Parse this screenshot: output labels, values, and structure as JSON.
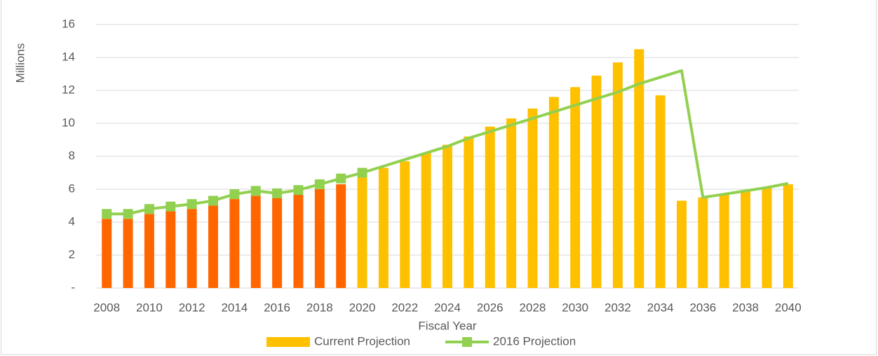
{
  "chart_data": {
    "type": "bar_line",
    "x_axis_title": "Fiscal Year",
    "y_axis_title": "Millions",
    "categories": [
      "2008",
      null,
      "2010",
      null,
      "2012",
      null,
      "2014",
      null,
      "2016",
      null,
      "2018",
      null,
      "2020",
      null,
      "2022",
      null,
      "2024",
      null,
      "2026",
      null,
      "2028",
      null,
      "2030",
      null,
      "2032",
      null,
      "2034",
      null,
      "2036",
      null,
      "2038",
      null,
      "2040"
    ],
    "ylim": [
      0,
      16
    ],
    "yticks": [
      {
        "value": 0,
        "label": "-"
      },
      2,
      4,
      6,
      8,
      10,
      12,
      14,
      16
    ],
    "grid": true,
    "legend": "bottom",
    "series": [
      {
        "name": "Current Projection",
        "type": "bar",
        "color": "#FFC000",
        "colors": [
          "#FF6600",
          "#FF6600",
          "#FF6600",
          "#FF6600",
          "#FF6600",
          "#FF6600",
          "#FF6600",
          "#FF6600",
          "#FF6600",
          "#FF6600",
          "#FF6600",
          "#FF6600",
          "#FFC000",
          "#FFC000",
          "#FFC000",
          "#FFC000",
          "#FFC000",
          "#FFC000",
          "#FFC000",
          "#FFC000",
          "#FFC000",
          "#FFC000",
          "#FFC000",
          "#FFC000",
          "#FFC000",
          "#FFC000",
          "#FFC000",
          "#FFC000",
          "#FFC000",
          "#FFC000",
          "#FFC000",
          "#FFC000",
          "#FFC000"
        ],
        "values": [
          4.2,
          4.2,
          4.5,
          4.7,
          4.8,
          5.0,
          5.4,
          5.6,
          5.5,
          5.7,
          6.0,
          6.3,
          6.9,
          7.3,
          7.7,
          8.2,
          8.7,
          9.2,
          9.8,
          10.3,
          10.9,
          11.6,
          12.2,
          12.9,
          13.7,
          14.5,
          11.7,
          5.3,
          5.5,
          5.7,
          5.9,
          6.1,
          6.3
        ]
      },
      {
        "name": "2016 Projection",
        "type": "line",
        "color": "#92D050",
        "marker_through": "2020",
        "values": [
          4.5,
          4.5,
          4.8,
          4.95,
          5.1,
          5.3,
          5.7,
          5.9,
          5.75,
          5.95,
          6.3,
          6.65,
          7.0,
          7.4,
          7.8,
          8.2,
          8.6,
          9.1,
          9.5,
          9.9,
          10.3,
          10.7,
          11.1,
          11.5,
          11.9,
          12.4,
          12.8,
          13.2,
          5.5,
          5.7,
          5.9,
          6.1,
          6.35
        ]
      }
    ]
  }
}
